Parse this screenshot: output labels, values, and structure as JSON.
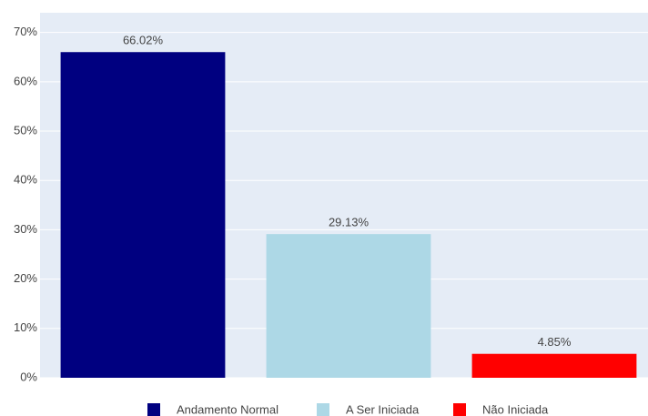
{
  "chart_data": {
    "type": "bar",
    "series": [
      {
        "name": "Andamento Normal",
        "color": "#000080",
        "values": [
          66.02
        ],
        "value_labels": [
          "66.02%"
        ]
      },
      {
        "name": "A Ser Iniciada",
        "color": "#add8e6",
        "values": [
          29.13
        ],
        "value_labels": [
          "29.13%"
        ]
      },
      {
        "name": "Não Iniciada",
        "color": "#ff0000",
        "values": [
          4.85
        ],
        "value_labels": [
          "4.85%"
        ]
      }
    ],
    "ylim": [
      0,
      74
    ],
    "yticks": [
      {
        "value": 0,
        "label": "0%"
      },
      {
        "value": 10,
        "label": "10%"
      },
      {
        "value": 20,
        "label": "20%"
      },
      {
        "value": 30,
        "label": "30%"
      },
      {
        "value": 40,
        "label": "40%"
      },
      {
        "value": 50,
        "label": "50%"
      },
      {
        "value": 60,
        "label": "60%"
      },
      {
        "value": 70,
        "label": "70%"
      }
    ],
    "grid": true,
    "legend": "bottom"
  }
}
